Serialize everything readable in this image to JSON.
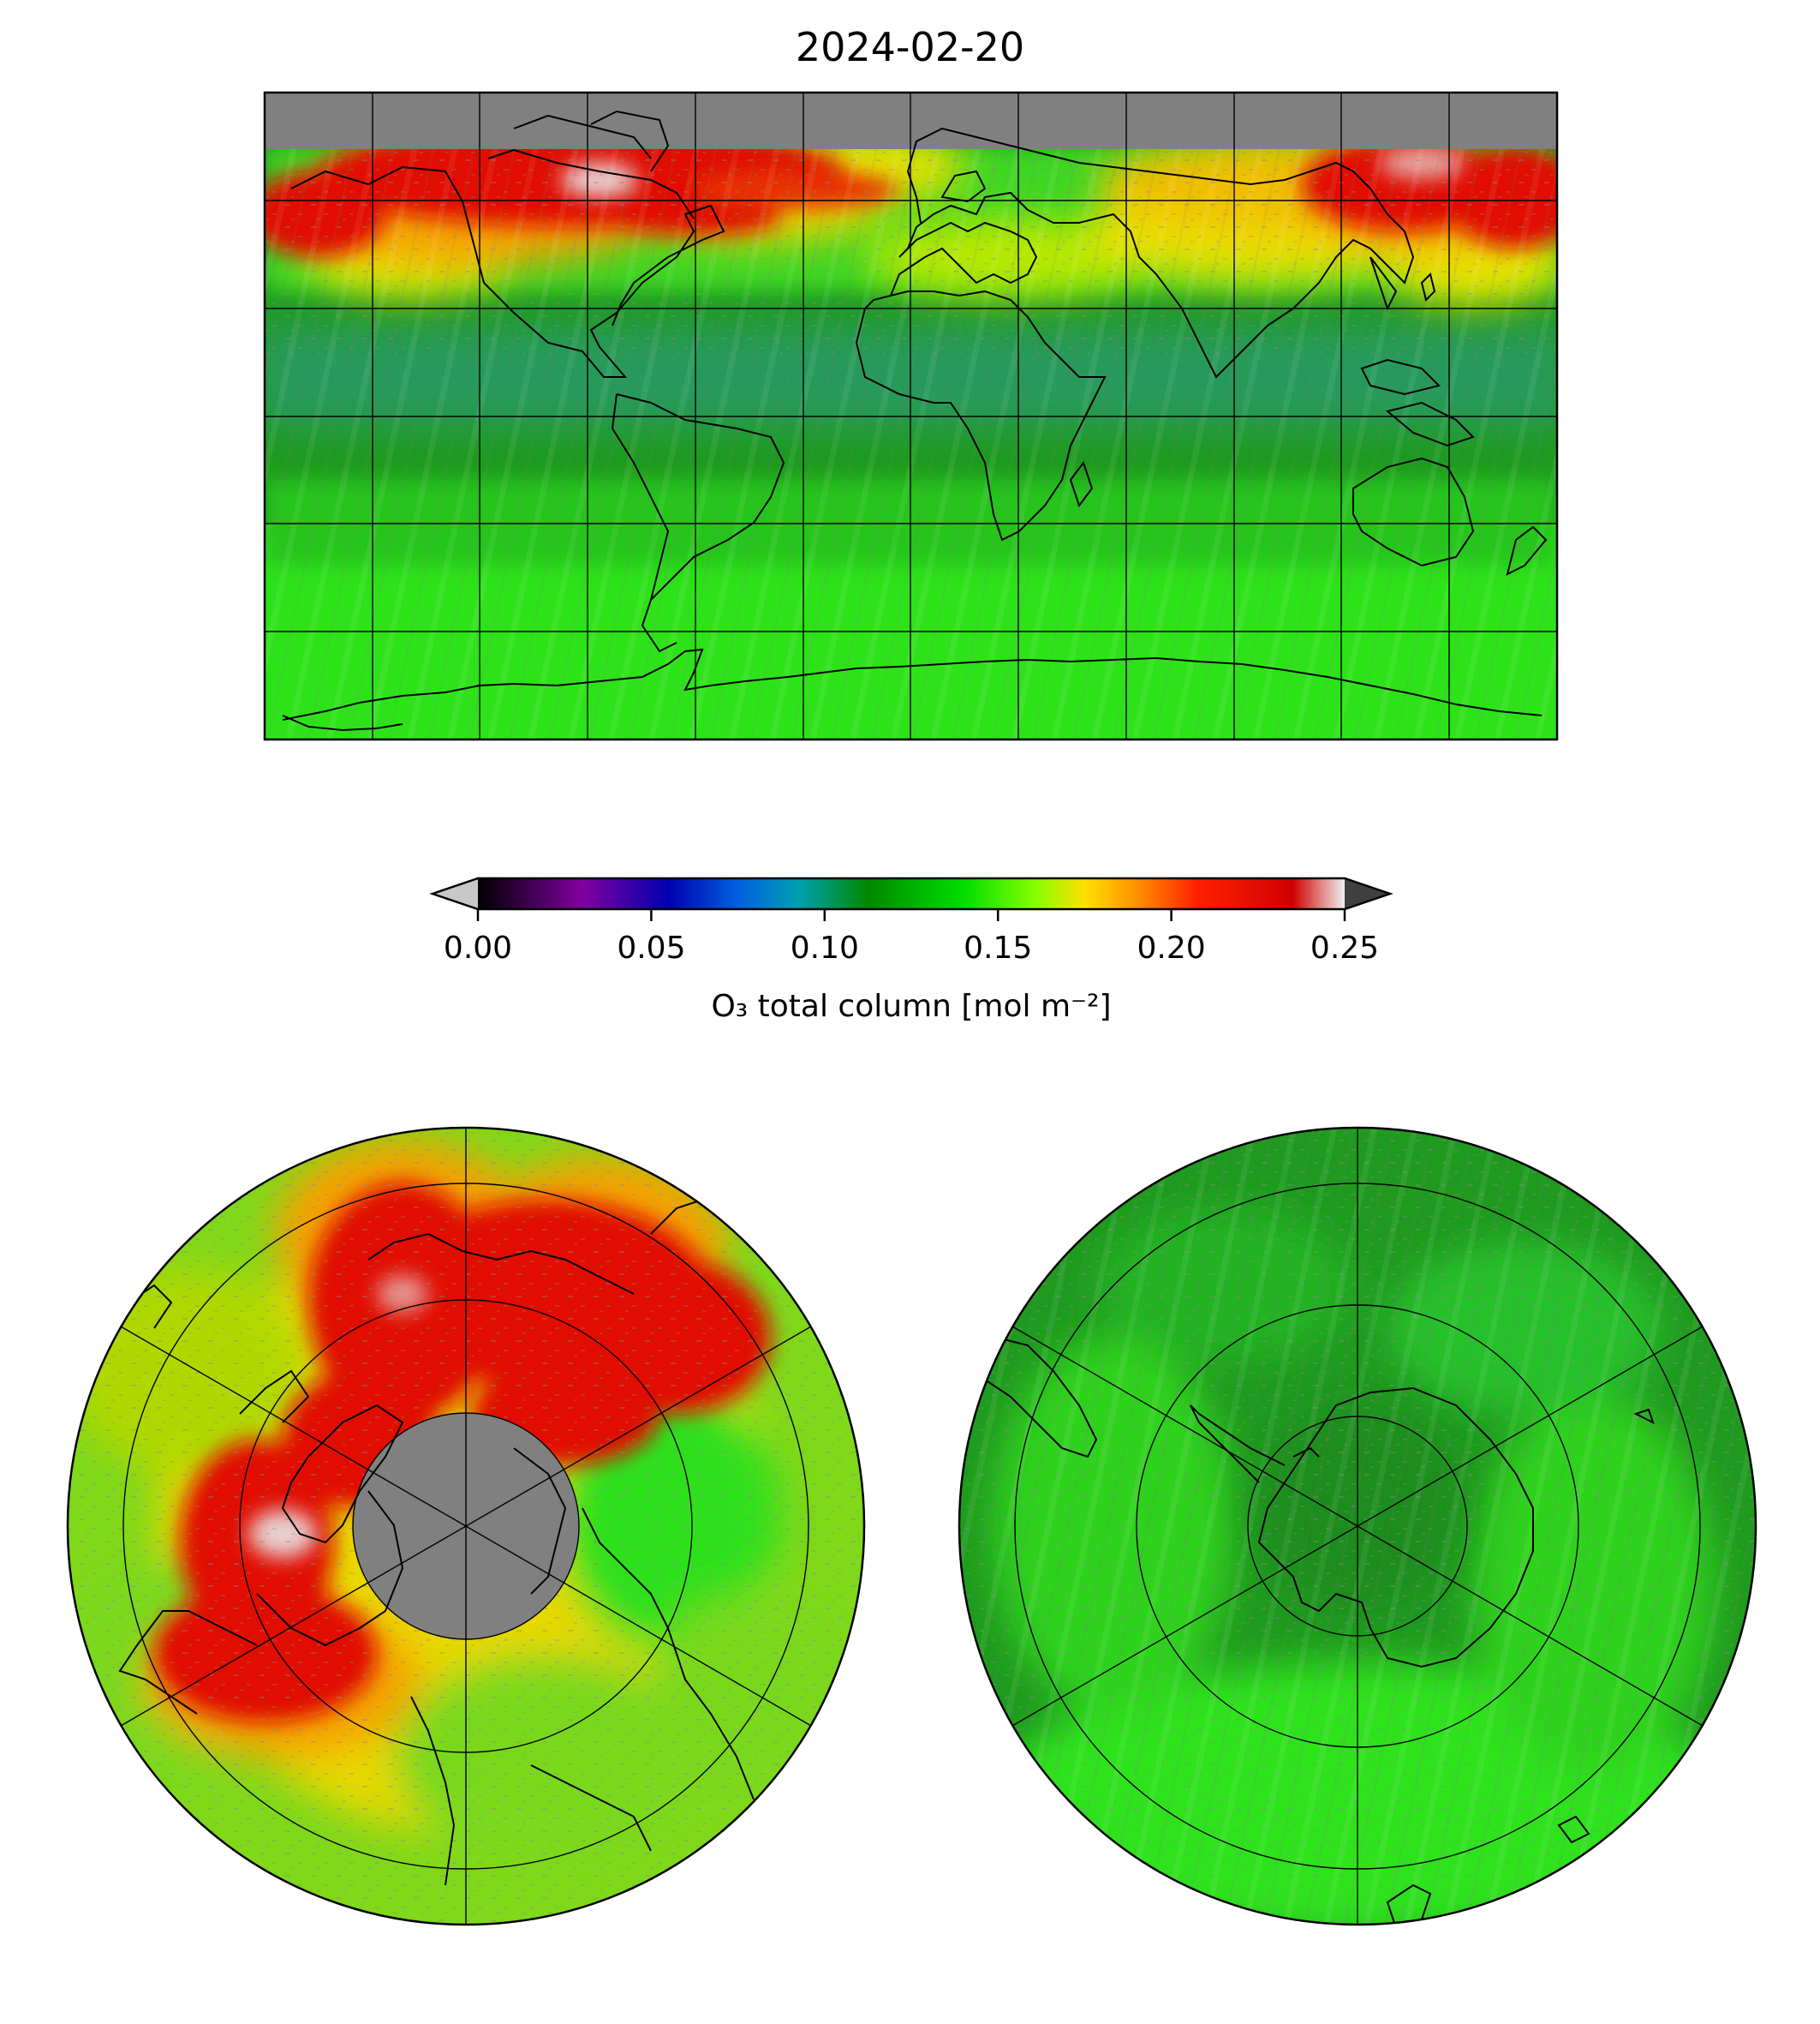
{
  "title": "2024-02-20",
  "colorbar": {
    "label": "O₃ total column [mol m⁻²]",
    "ticks": [
      "0.00",
      "0.05",
      "0.10",
      "0.15",
      "0.20",
      "0.25"
    ],
    "range": [
      0,
      0.25
    ],
    "extend": "both",
    "under_color": "#c8c8c8",
    "over_color": "#404040",
    "stops": [
      "#000000",
      "#8000a0",
      "#0000b0",
      "#0060e0",
      "#00a0b0",
      "#008800",
      "#00dd00",
      "#80ff00",
      "#ffe000",
      "#ff9000",
      "#ff2000",
      "#d00000",
      "#f0f0f0"
    ]
  },
  "colors": {
    "no_data": "#808080",
    "coastline": "#000000",
    "grid": "#000000",
    "dark_green": "#1f9a1f",
    "green": "#2ecc25",
    "bright_green": "#33e011",
    "teal": "#2a9a6a",
    "yellow": "#f2e500",
    "orange": "#f5a000",
    "red": "#e01000",
    "pale": "#e0d0d0"
  },
  "panels": [
    {
      "projection": "equirectangular",
      "region": "global"
    },
    {
      "projection": "north-polar-stereographic",
      "region": "northern hemisphere"
    },
    {
      "projection": "south-polar-stereographic",
      "region": "southern hemisphere"
    }
  ]
}
